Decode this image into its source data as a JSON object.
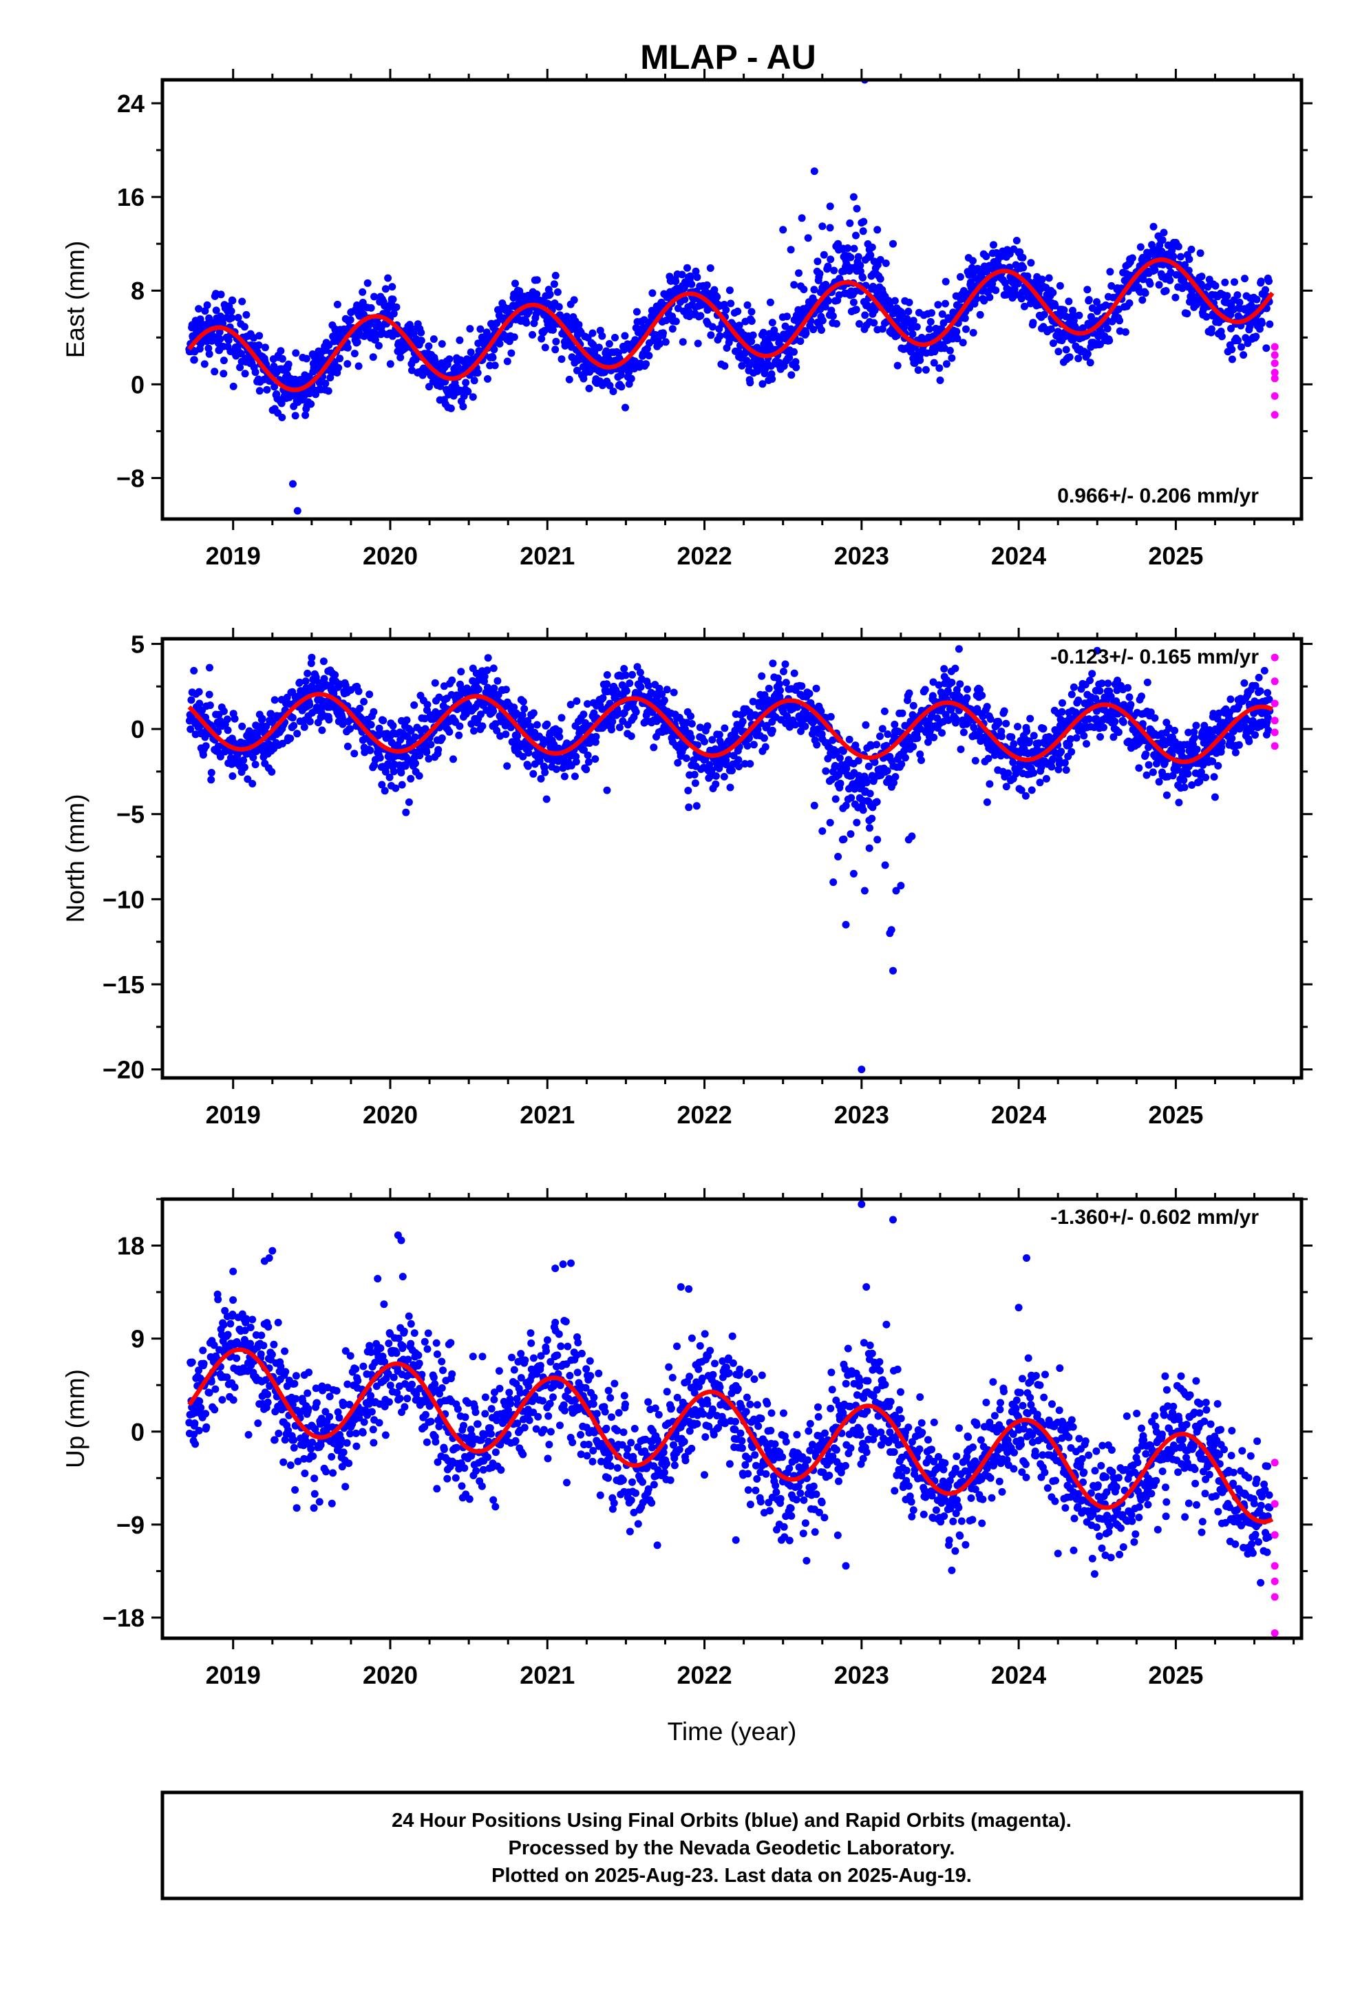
{
  "title": "MLAP - AU",
  "footer": {
    "line1": "24 Hour Positions Using Final Orbits (blue) and Rapid Orbits (magenta).",
    "line2": "Processed by the Nevada Geodetic Laboratory.",
    "line3": "Plotted on 2025-Aug-23. Last data on 2025-Aug-19."
  },
  "colors": {
    "final": "#0000ff",
    "rapid": "#ff00ff",
    "model": "#ff0000"
  },
  "chart_data": [
    {
      "type": "scatter",
      "ylabel": "East (mm)",
      "xlabel": "",
      "xlim": [
        2018.55,
        2025.8
      ],
      "ylim": [
        -11.5,
        26
      ],
      "x_ticks": [
        2019,
        2020,
        2021,
        2022,
        2023,
        2024,
        2025
      ],
      "y_ticks": [
        -8,
        0,
        8,
        16,
        24
      ],
      "rate": "0.966+/- 0.206 mm/yr",
      "rate_position": "bottom-right",
      "model": {
        "a": 1.75,
        "b": 0.966,
        "t0": 2018.7,
        "amp": 2.9,
        "phase": 2018.9,
        "amp_years": [
          2023.0
        ],
        "amp_boost": 0.0
      },
      "noise": 1.3,
      "rapid_values": [
        3.2,
        2.5,
        1.8,
        1.0,
        0.5,
        -1.0,
        -2.6
      ],
      "outliers": [
        [
          2022.5,
          13.2
        ],
        [
          2022.55,
          11.5
        ],
        [
          2022.6,
          9.5
        ],
        [
          2022.62,
          14.2
        ],
        [
          2022.66,
          12.5
        ],
        [
          2022.7,
          18.2
        ],
        [
          2022.72,
          10.5
        ],
        [
          2022.75,
          13.5
        ],
        [
          2022.8,
          15.2
        ],
        [
          2022.85,
          12.0
        ],
        [
          2022.95,
          16.0
        ],
        [
          2022.97,
          15.0
        ],
        [
          2023.0,
          13.8
        ],
        [
          2023.02,
          26.0
        ],
        [
          2023.05,
          11.5
        ],
        [
          2023.08,
          10.5
        ],
        [
          2023.1,
          13.2
        ],
        [
          2023.12,
          9.0
        ],
        [
          2023.2,
          12.0
        ],
        [
          2022.57,
          8.5
        ],
        [
          2022.42,
          7.0
        ],
        [
          2019.41,
          -10.8
        ],
        [
          2019.38,
          -8.5
        ],
        [
          2022.3,
          6.2
        ]
      ]
    },
    {
      "type": "scatter",
      "ylabel": "North (mm)",
      "xlabel": "",
      "xlim": [
        2018.55,
        2025.8
      ],
      "ylim": [
        -20.5,
        5.3
      ],
      "x_ticks": [
        2019,
        2020,
        2021,
        2022,
        2023,
        2024,
        2025
      ],
      "y_ticks": [
        -20,
        -15,
        -10,
        -5,
        0,
        5
      ],
      "rate": "-0.123+/- 0.165 mm/yr",
      "rate_position": "top-right",
      "model": {
        "a": 0.5,
        "b": -0.123,
        "t0": 2018.7,
        "amp": 1.65,
        "phase": 2019.55,
        "amp_years": [],
        "amp_boost": 0.0
      },
      "noise": 0.95,
      "rapid_values": [
        4.2,
        2.8,
        1.5,
        0.5,
        -0.2,
        -1.0
      ],
      "outliers": [
        [
          2020.1,
          -4.9
        ],
        [
          2020.12,
          -4.3
        ],
        [
          2021.9,
          -4.6
        ],
        [
          2022.7,
          -4.5
        ],
        [
          2022.75,
          -6.0
        ],
        [
          2022.8,
          -5.5
        ],
        [
          2022.85,
          -7.5
        ],
        [
          2022.88,
          -6.5
        ],
        [
          2022.9,
          -11.5
        ],
        [
          2022.95,
          -8.5
        ],
        [
          2023.0,
          -20.0
        ],
        [
          2023.02,
          -9.5
        ],
        [
          2023.05,
          -7.0
        ],
        [
          2023.1,
          -6.5
        ],
        [
          2023.15,
          -8.0
        ],
        [
          2023.18,
          -12.0
        ],
        [
          2023.19,
          -11.8
        ],
        [
          2023.2,
          -14.2
        ],
        [
          2023.22,
          -9.5
        ],
        [
          2023.25,
          -9.2
        ],
        [
          2023.3,
          -6.5
        ],
        [
          2023.32,
          -6.3
        ],
        [
          2022.82,
          -9.0
        ],
        [
          2021.38,
          -3.6
        ],
        [
          2025.25,
          -4.0
        ],
        [
          2023.8,
          -4.3
        ],
        [
          2024.5,
          4.6
        ],
        [
          2023.62,
          4.7
        ],
        [
          2019.5,
          4.2
        ],
        [
          2018.85,
          3.6
        ]
      ]
    },
    {
      "type": "scatter",
      "ylabel": "Up (mm)",
      "xlabel": "Time (year)",
      "xlim": [
        2018.55,
        2025.8
      ],
      "ylim": [
        -20,
        22.5
      ],
      "x_ticks": [
        2019,
        2020,
        2021,
        2022,
        2023,
        2024,
        2025
      ],
      "y_ticks": [
        -18,
        -9,
        0,
        9,
        18
      ],
      "rate": "-1.360+/- 0.602 mm/yr",
      "rate_position": "top-right",
      "model": {
        "a": 4.5,
        "b": -1.36,
        "t0": 2018.7,
        "amp": 3.9,
        "phase": 2019.05,
        "amp_years": [],
        "amp_boost": 0.0
      },
      "noise": 2.8,
      "rapid_values": [
        -3.0,
        -7.0,
        -10.0,
        -13.0,
        -14.5,
        -16.0,
        -19.5
      ],
      "outliers": [
        [
          2019.0,
          15.5
        ],
        [
          2019.2,
          16.5
        ],
        [
          2019.25,
          17.5
        ],
        [
          2019.23,
          16.8
        ],
        [
          2019.92,
          14.8
        ],
        [
          2020.05,
          19.0
        ],
        [
          2020.07,
          18.5
        ],
        [
          2020.08,
          15.0
        ],
        [
          2021.1,
          16.2
        ],
        [
          2021.05,
          15.8
        ],
        [
          2021.15,
          16.3
        ],
        [
          2021.85,
          14.0
        ],
        [
          2021.9,
          13.8
        ],
        [
          2023.0,
          22.0
        ],
        [
          2023.03,
          14.0
        ],
        [
          2023.2,
          20.5
        ],
        [
          2024.05,
          16.8
        ],
        [
          2024.0,
          12.0
        ],
        [
          2022.9,
          -13.0
        ],
        [
          2022.65,
          -12.5
        ],
        [
          2021.7,
          -11.0
        ],
        [
          2022.2,
          -10.5
        ],
        [
          2024.25,
          -11.8
        ],
        [
          2024.35,
          -11.5
        ],
        [
          2019.55,
          -6.8
        ]
      ]
    }
  ]
}
